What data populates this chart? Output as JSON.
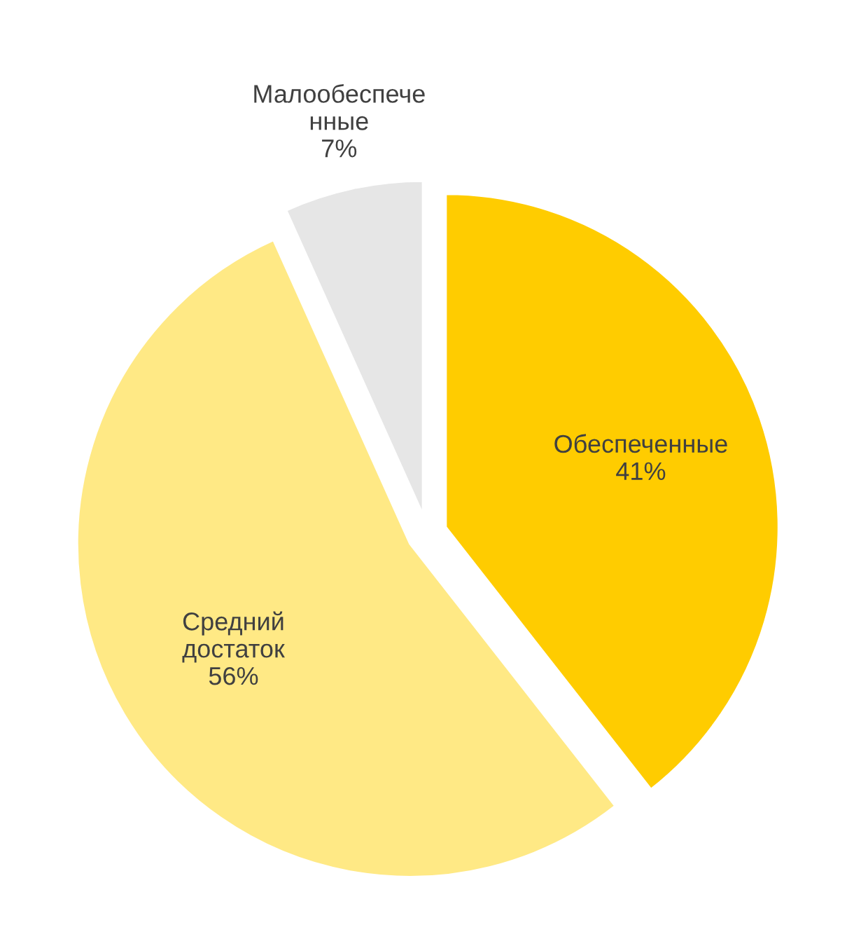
{
  "chart_data": {
    "type": "pie",
    "categories": [
      "Обеспеченные",
      "Средний\nдостаток",
      "Малообеспече\nнные"
    ],
    "values": [
      41,
      56,
      7
    ],
    "value_labels": [
      "41%",
      "56%",
      "7%"
    ],
    "colors": [
      "#ffcc00",
      "#ffe985",
      "#e6e6e6"
    ],
    "legend": false
  }
}
